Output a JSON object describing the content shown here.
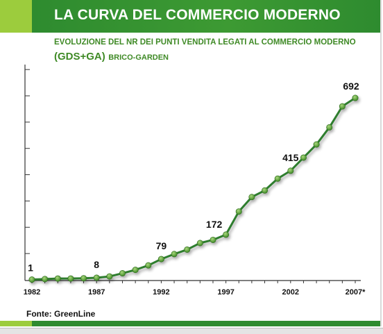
{
  "header": {
    "title": "LA CURVA DEL COMMERCIO MODERNO",
    "subtitle_line1": "EVOLUZIONE DEL NR DEI PUNTI VENDITA LEGATI AL COMMERCIO MODERNO",
    "subtitle_line2_big": "(GDS+GA)",
    "subtitle_line2_small": "BRICO-GARDEN"
  },
  "footer": {
    "source": "Fonte: GreenLine"
  },
  "colors": {
    "banner_green": "#2e8b2f",
    "accent_light_green": "#9ccc3d",
    "line_green": "#2e7d2e",
    "marker_green": "#5a9e3a"
  },
  "chart_data": {
    "type": "line",
    "title": "",
    "xlabel": "",
    "ylabel": "",
    "xlim": [
      1982,
      2007
    ],
    "ylim": [
      0,
      700
    ],
    "x_tick_labels": [
      "1982",
      "1987",
      "1992",
      "1997",
      "2002",
      "2007*"
    ],
    "x_tick_values": [
      1982,
      1987,
      1992,
      1997,
      2002,
      2007
    ],
    "grid": false,
    "legend": "none",
    "series": [
      {
        "x": [
          1982,
          1983,
          1984,
          1985,
          1986,
          1987,
          1988,
          1989,
          1990,
          1991,
          1992,
          1993,
          1994,
          1995,
          1996,
          1997,
          1998,
          1999,
          2000,
          2001,
          2002,
          2003,
          2004,
          2005,
          2006,
          2007
        ],
        "values": [
          1,
          3,
          5,
          5,
          6,
          8,
          13,
          25,
          38,
          55,
          79,
          98,
          115,
          140,
          152,
          172,
          260,
          315,
          340,
          385,
          415,
          465,
          515,
          580,
          660,
          692
        ]
      }
    ],
    "data_labels": [
      {
        "x": 1982,
        "label": "1"
      },
      {
        "x": 1987,
        "label": "8"
      },
      {
        "x": 1992,
        "label": "79"
      },
      {
        "x": 1997,
        "label": "172"
      },
      {
        "x": 2002,
        "label": "415"
      },
      {
        "x": 2007,
        "label": "692"
      }
    ]
  }
}
